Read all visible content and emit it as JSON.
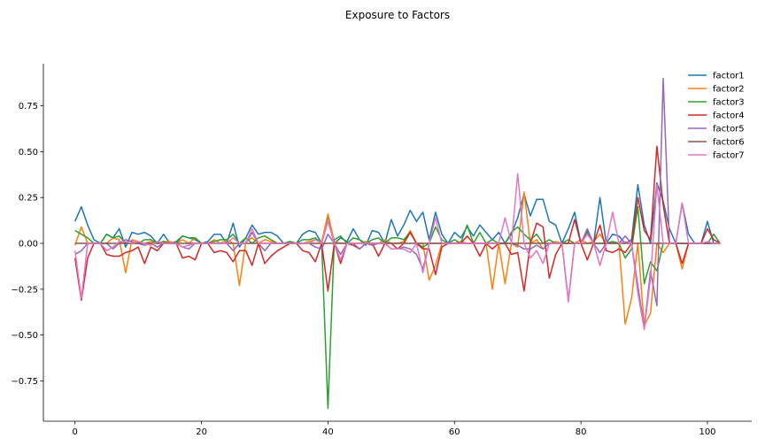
{
  "chart_data": {
    "type": "line",
    "title": "Exposure to Factors",
    "xlabel": "",
    "ylabel": "",
    "xlim": [
      -5,
      107
    ],
    "ylim": [
      -0.97,
      0.98
    ],
    "xticks": [
      0,
      20,
      40,
      60,
      80,
      100
    ],
    "yticks": [
      -0.75,
      -0.5,
      -0.25,
      0.0,
      0.25,
      0.5,
      0.75
    ],
    "ytick_labels": [
      "−0.75",
      "−0.50",
      "−0.25",
      "0.00",
      "0.25",
      "0.50",
      "0.75"
    ],
    "grid": false,
    "legend_position": "top-right",
    "spines": [
      "left",
      "bottom"
    ],
    "x": [
      0,
      1,
      2,
      3,
      4,
      5,
      6,
      7,
      8,
      9,
      10,
      11,
      12,
      13,
      14,
      15,
      16,
      17,
      18,
      19,
      20,
      21,
      22,
      23,
      24,
      25,
      26,
      27,
      28,
      29,
      30,
      31,
      32,
      33,
      34,
      35,
      36,
      37,
      38,
      39,
      40,
      41,
      42,
      43,
      44,
      45,
      46,
      47,
      48,
      49,
      50,
      51,
      52,
      53,
      54,
      55,
      56,
      57,
      58,
      59,
      60,
      61,
      62,
      63,
      64,
      65,
      66,
      67,
      68,
      69,
      70,
      71,
      72,
      73,
      74,
      75,
      76,
      77,
      78,
      79,
      80,
      81,
      82,
      83,
      84,
      85,
      86,
      87,
      88,
      89,
      90,
      91,
      92,
      93,
      94,
      95,
      96,
      97,
      98,
      99,
      100,
      101,
      102
    ],
    "series": [
      {
        "name": "factor1",
        "color": "#1f77b4",
        "values": [
          0.12,
          0.2,
          0.1,
          0.02,
          0.0,
          0.05,
          0.03,
          0.08,
          -0.02,
          0.06,
          0.05,
          0.06,
          0.04,
          0.0,
          0.05,
          0.0,
          0.01,
          0.04,
          0.03,
          0.02,
          0.0,
          0.01,
          0.05,
          0.05,
          0.0,
          0.11,
          -0.02,
          0.03,
          0.1,
          0.05,
          0.06,
          0.06,
          0.04,
          0.0,
          0.01,
          0.0,
          0.05,
          0.07,
          0.06,
          0.0,
          0.15,
          0.0,
          0.03,
          0.01,
          0.08,
          0.02,
          -0.01,
          0.07,
          0.06,
          0.0,
          0.13,
          0.04,
          0.1,
          0.18,
          0.12,
          0.17,
          0.02,
          0.17,
          0.05,
          0.0,
          0.06,
          0.03,
          0.09,
          0.04,
          0.1,
          0.06,
          0.02,
          0.06,
          0.0,
          0.05,
          0.14,
          0.27,
          0.15,
          0.24,
          0.24,
          0.12,
          0.1,
          0.0,
          0.08,
          0.17,
          0.0,
          0.07,
          0.0,
          0.25,
          0.0,
          0.05,
          0.04,
          0.0,
          0.02,
          0.32,
          0.1,
          0.0,
          0.33,
          0.23,
          0.08,
          0.0,
          0.22,
          0.05,
          0.0,
          0.0,
          0.12,
          0.0,
          0.0
        ]
      },
      {
        "name": "factor2",
        "color": "#ff7f0e",
        "values": [
          -0.01,
          0.09,
          0.0,
          0.0,
          0.0,
          0.0,
          0.03,
          0.02,
          -0.16,
          0.02,
          0.01,
          0.0,
          0.01,
          0.0,
          0.01,
          0.01,
          0.0,
          0.02,
          0.0,
          0.03,
          0.0,
          0.0,
          0.02,
          0.0,
          0.02,
          0.0,
          -0.23,
          0.01,
          0.03,
          0.0,
          0.02,
          0.01,
          0.0,
          0.0,
          0.01,
          0.0,
          0.0,
          0.01,
          0.02,
          0.01,
          0.16,
          0.01,
          0.0,
          0.0,
          0.0,
          0.0,
          0.01,
          0.0,
          0.0,
          0.02,
          0.0,
          0.0,
          0.01,
          0.07,
          0.0,
          0.0,
          -0.2,
          -0.12,
          0.0,
          0.0,
          0.0,
          0.01,
          0.0,
          0.0,
          0.0,
          0.0,
          -0.25,
          0.0,
          -0.22,
          0.0,
          -0.02,
          0.28,
          0.0,
          0.02,
          -0.03,
          0.0,
          0.01,
          0.0,
          0.0,
          0.0,
          0.02,
          0.0,
          0.01,
          0.05,
          0.0,
          0.01,
          0.0,
          -0.44,
          -0.3,
          0.0,
          -0.45,
          -0.38,
          0.0,
          -0.05,
          0.0,
          0.0,
          -0.14,
          0.0,
          0.0,
          0.0,
          0.0,
          0.0,
          0.0
        ]
      },
      {
        "name": "factor3",
        "color": "#2ca02c",
        "values": [
          0.07,
          0.05,
          0.03,
          0.0,
          0.0,
          0.05,
          0.03,
          0.04,
          0.0,
          0.0,
          0.0,
          0.02,
          0.02,
          0.0,
          0.01,
          0.0,
          0.0,
          0.04,
          0.03,
          0.03,
          0.0,
          0.0,
          0.01,
          0.02,
          0.02,
          0.05,
          0.0,
          0.03,
          0.0,
          0.03,
          0.04,
          0.02,
          0.0,
          0.0,
          0.01,
          0.0,
          0.02,
          0.02,
          0.03,
          0.0,
          -0.9,
          0.02,
          0.04,
          0.0,
          0.03,
          0.02,
          0.0,
          0.02,
          0.03,
          0.0,
          0.03,
          0.03,
          0.02,
          0.06,
          0.0,
          -0.02,
          0.0,
          0.09,
          0.02,
          0.0,
          0.02,
          0.0,
          0.1,
          0.0,
          0.06,
          0.0,
          0.02,
          0.0,
          0.0,
          0.06,
          0.09,
          0.05,
          0.02,
          0.05,
          0.0,
          0.02,
          0.0,
          0.0,
          0.02,
          0.0,
          0.0,
          0.06,
          0.0,
          0.0,
          0.0,
          0.01,
          0.0,
          -0.08,
          -0.03,
          0.2,
          -0.22,
          -0.1,
          -0.15,
          0.0,
          0.0,
          0.0,
          0.0,
          0.0,
          0.0,
          0.0,
          0.0,
          0.05,
          0.0
        ]
      },
      {
        "name": "factor4",
        "color": "#d62728",
        "values": [
          -0.08,
          -0.31,
          -0.08,
          0.0,
          0.0,
          -0.06,
          -0.07,
          -0.07,
          -0.05,
          -0.04,
          -0.02,
          -0.11,
          -0.02,
          -0.04,
          0.0,
          0.0,
          0.0,
          -0.08,
          -0.07,
          -0.09,
          0.0,
          0.0,
          -0.05,
          -0.04,
          -0.05,
          -0.1,
          -0.04,
          -0.04,
          -0.12,
          0.0,
          -0.11,
          -0.07,
          -0.04,
          -0.02,
          0.0,
          0.0,
          -0.04,
          -0.05,
          -0.1,
          0.0,
          -0.26,
          0.0,
          -0.11,
          0.0,
          -0.01,
          -0.03,
          0.0,
          0.0,
          -0.07,
          0.0,
          0.0,
          -0.03,
          0.0,
          0.06,
          0.0,
          -0.03,
          -0.03,
          -0.17,
          -0.02,
          0.0,
          0.0,
          0.0,
          0.04,
          0.0,
          -0.07,
          0.0,
          -0.03,
          0.0,
          0.0,
          -0.06,
          -0.05,
          -0.26,
          0.0,
          0.11,
          0.09,
          -0.19,
          -0.06,
          0.0,
          0.0,
          0.13,
          0.0,
          -0.09,
          0.0,
          0.1,
          -0.04,
          -0.05,
          -0.03,
          -0.05,
          0.0,
          0.25,
          0.07,
          0.02,
          0.53,
          0.21,
          0.0,
          0.0,
          -0.11,
          0.0,
          0.0,
          0.0,
          0.08,
          0.02,
          0.0
        ]
      },
      {
        "name": "factor5",
        "color": "#9467bd",
        "values": [
          -0.06,
          -0.04,
          0.0,
          0.0,
          0.0,
          0.0,
          -0.03,
          0.0,
          0.02,
          0.01,
          0.0,
          -0.01,
          0.0,
          -0.02,
          0.0,
          0.0,
          0.0,
          -0.02,
          -0.03,
          0.0,
          0.0,
          0.0,
          0.0,
          0.0,
          0.0,
          -0.04,
          0.0,
          0.0,
          0.06,
          0.0,
          -0.04,
          0.0,
          0.0,
          0.0,
          0.0,
          0.0,
          0.0,
          0.0,
          -0.02,
          -0.03,
          0.05,
          0.0,
          -0.06,
          0.0,
          0.0,
          -0.03,
          0.0,
          -0.01,
          0.0,
          0.0,
          -0.03,
          -0.03,
          -0.02,
          -0.03,
          -0.06,
          -0.14,
          0.0,
          0.0,
          0.0,
          0.0,
          0.0,
          0.0,
          0.0,
          0.0,
          0.0,
          0.0,
          0.0,
          0.0,
          0.0,
          0.0,
          -0.01,
          -0.03,
          -0.03,
          -0.01,
          -0.03,
          0.0,
          0.0,
          0.0,
          -0.31,
          0.0,
          0.0,
          0.08,
          0.0,
          -0.05,
          0.0,
          0.0,
          0.0,
          0.04,
          0.0,
          -0.23,
          -0.46,
          -0.15,
          -0.34,
          0.9,
          0.0,
          0.0,
          0.0,
          0.0,
          0.0,
          0.0,
          0.0,
          0.0,
          0.0
        ]
      },
      {
        "name": "factor6",
        "color": "#8c564b",
        "values": [
          0.0,
          0.0,
          0.0,
          0.0,
          0.0,
          0.0,
          0.0,
          0.0,
          0.0,
          0.0,
          0.0,
          0.0,
          0.0,
          0.0,
          0.0,
          0.0,
          0.0,
          0.0,
          0.0,
          0.0,
          0.0,
          0.0,
          0.0,
          0.0,
          0.0,
          0.0,
          0.0,
          0.0,
          0.0,
          0.0,
          0.0,
          0.0,
          0.0,
          0.0,
          0.0,
          0.0,
          0.0,
          0.0,
          0.0,
          0.0,
          0.0,
          0.0,
          0.0,
          0.0,
          0.0,
          0.0,
          0.0,
          0.0,
          0.0,
          0.0,
          0.0,
          0.0,
          0.0,
          0.0,
          0.0,
          0.0,
          0.0,
          0.0,
          0.0,
          0.0,
          0.0,
          0.0,
          0.0,
          0.0,
          0.0,
          0.0,
          0.0,
          0.0,
          0.0,
          0.0,
          0.0,
          0.0,
          0.0,
          0.0,
          0.0,
          0.0,
          0.0,
          0.0,
          0.0,
          0.0,
          0.0,
          0.0,
          0.0,
          0.0,
          0.0,
          0.0,
          0.0,
          0.0,
          0.0,
          0.0,
          0.0,
          0.0,
          0.0,
          0.0,
          0.0,
          0.0,
          0.0,
          0.0,
          0.0,
          0.0,
          0.0,
          0.0,
          0.0
        ]
      },
      {
        "name": "factor7",
        "color": "#e377c2",
        "values": [
          -0.04,
          -0.3,
          0.0,
          0.0,
          0.0,
          -0.04,
          -0.02,
          0.01,
          0.01,
          0.0,
          0.01,
          0.0,
          -0.01,
          0.01,
          0.0,
          0.0,
          0.0,
          -0.02,
          -0.01,
          0.0,
          0.0,
          0.0,
          0.0,
          0.0,
          0.0,
          0.03,
          0.0,
          0.0,
          0.08,
          0.0,
          0.0,
          0.0,
          0.0,
          0.0,
          0.0,
          0.0,
          0.0,
          0.0,
          0.02,
          0.0,
          0.12,
          0.0,
          -0.09,
          0.0,
          0.0,
          0.0,
          0.0,
          0.0,
          0.0,
          0.0,
          -0.03,
          -0.03,
          -0.03,
          -0.05,
          0.0,
          -0.16,
          0.0,
          0.14,
          0.0,
          0.0,
          0.0,
          0.0,
          0.0,
          0.0,
          0.0,
          0.0,
          0.0,
          0.0,
          0.14,
          0.0,
          0.38,
          0.0,
          -0.08,
          -0.04,
          -0.11,
          0.0,
          0.0,
          0.0,
          -0.32,
          0.0,
          0.0,
          0.05,
          0.0,
          -0.12,
          0.0,
          0.17,
          0.0,
          0.01,
          0.0,
          -0.27,
          -0.47,
          -0.19,
          0.32,
          0.0,
          0.0,
          0.0,
          0.22,
          0.0,
          0.0,
          0.0,
          0.01,
          0.0,
          0.0
        ]
      }
    ]
  }
}
